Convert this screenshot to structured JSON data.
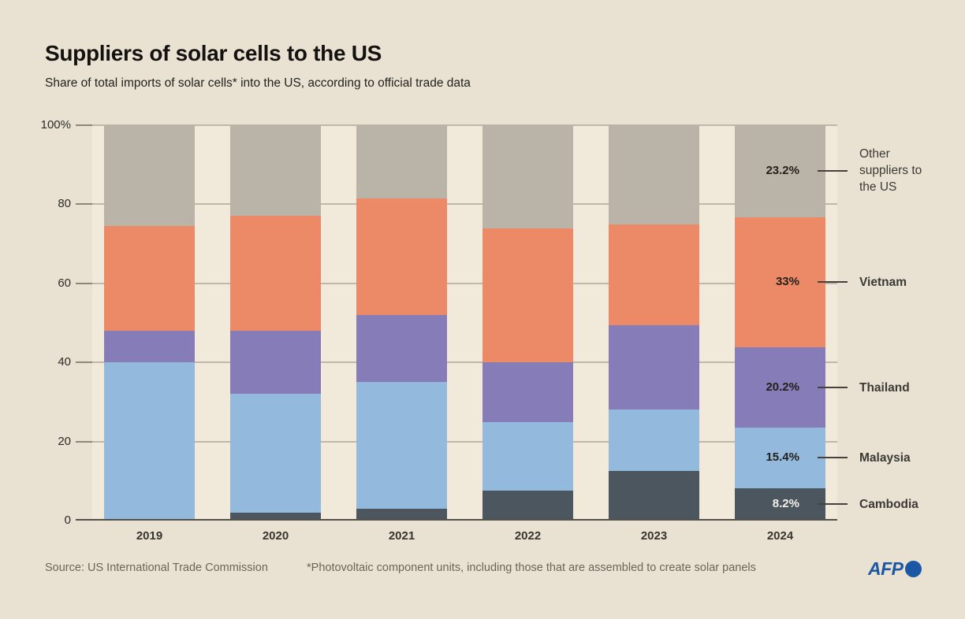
{
  "header": {
    "title": "Suppliers of solar cells to the US",
    "subtitle": "Share of total imports of solar cells* into the US, according to official trade data"
  },
  "chart_data": {
    "type": "bar",
    "stacked": true,
    "title": "Suppliers of solar cells to the US",
    "categories": [
      "2019",
      "2020",
      "2021",
      "2022",
      "2023",
      "2024"
    ],
    "series": [
      {
        "name": "Cambodia",
        "color": "#4b565e",
        "values": [
          0.5,
          2,
          3,
          7.5,
          12.5,
          8.2
        ],
        "label_2024": "8.2%",
        "label_light": true
      },
      {
        "name": "Malaysia",
        "color": "#93badc",
        "values": [
          39.5,
          30,
          32,
          17.5,
          15.5,
          15.4
        ],
        "label_2024": "15.4%",
        "label_light": false
      },
      {
        "name": "Thailand",
        "color": "#857cb8",
        "values": [
          8,
          16,
          17,
          15,
          21.5,
          20.2
        ],
        "label_2024": "20.2%",
        "label_light": false
      },
      {
        "name": "Vietnam",
        "color": "#ec8966",
        "values": [
          26.5,
          29,
          29.5,
          34,
          25.5,
          33
        ],
        "label_2024": "33%",
        "label_light": false
      },
      {
        "name": "Other suppliers to the US",
        "color": "#bab3a7",
        "values": [
          25.5,
          23,
          18.5,
          26,
          25,
          23.2
        ],
        "label_2024": "23.2%",
        "label_light": false
      }
    ],
    "ylim": [
      0,
      100
    ],
    "yticks": [
      {
        "value": 100,
        "label": "100%"
      },
      {
        "value": 80,
        "label": "80"
      },
      {
        "value": 60,
        "label": "60"
      },
      {
        "value": 40,
        "label": "40"
      },
      {
        "value": 20,
        "label": "20"
      },
      {
        "value": 0,
        "label": "0"
      }
    ],
    "grid": true,
    "legend_position": "right"
  },
  "footer": {
    "source": "Source: US International Trade Commission",
    "footnote": "*Photovoltaic component units, including those that are assembled to create solar panels",
    "logo_text": "AFP"
  },
  "colors": {
    "background": "#e9e1d1",
    "plot_background": "#f1e9d9",
    "gridline": "#bfb7a8",
    "baseline": "#55524b",
    "percent_label": "#25201b",
    "percent_label_on_dark": "#f4f1e9",
    "afp_blue": "#1c57a5"
  }
}
